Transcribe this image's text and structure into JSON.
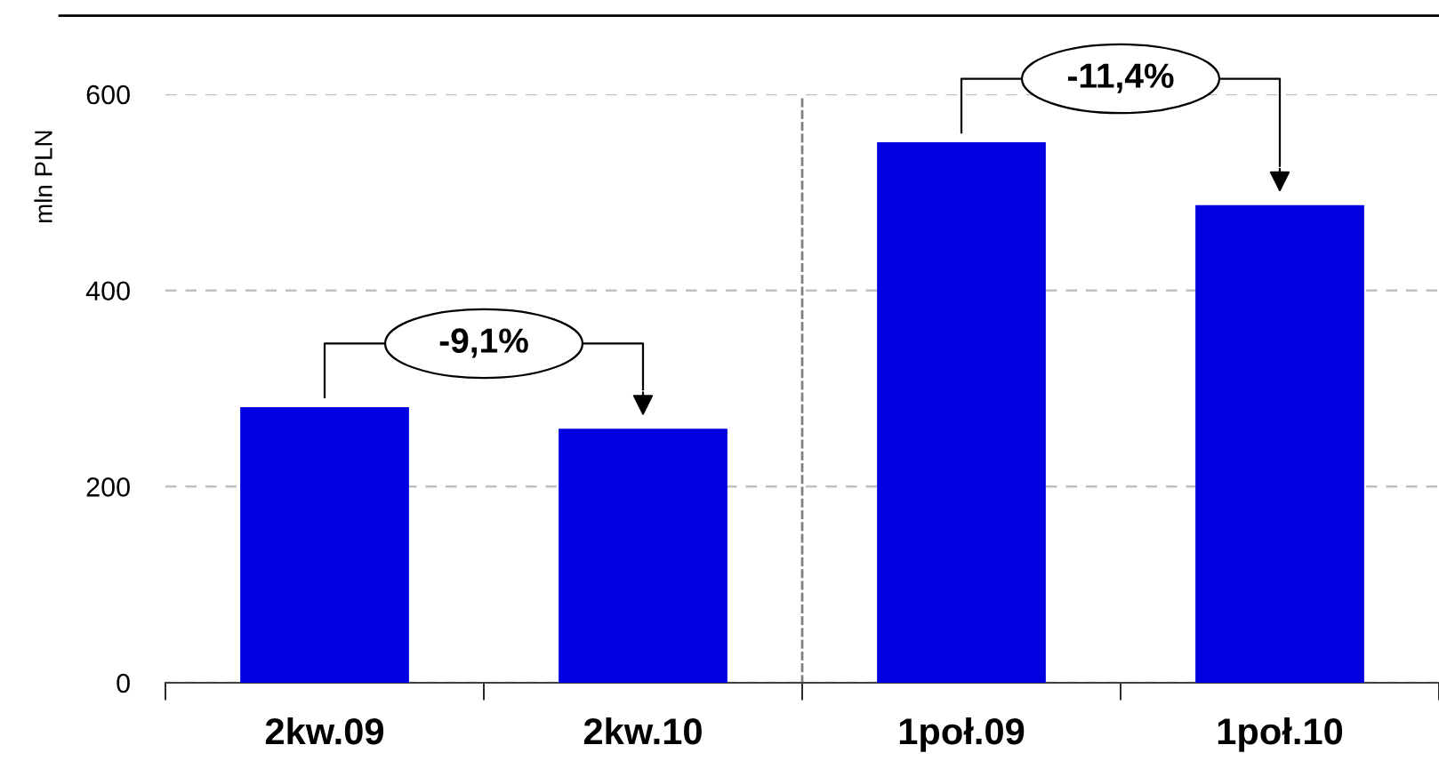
{
  "chart_data": {
    "type": "bar",
    "ylabel": "mln PLN",
    "categories": [
      "2kw.09",
      "2kw.10",
      "1poł.09",
      "1poł.10"
    ],
    "values": [
      281,
      259,
      551,
      487
    ],
    "color": "#0000e0",
    "ylim": [
      0,
      600
    ],
    "yticks": [
      0,
      200,
      400,
      600
    ],
    "grid": "y",
    "annotations": [
      "-9,1%",
      "-11,4%"
    ]
  }
}
